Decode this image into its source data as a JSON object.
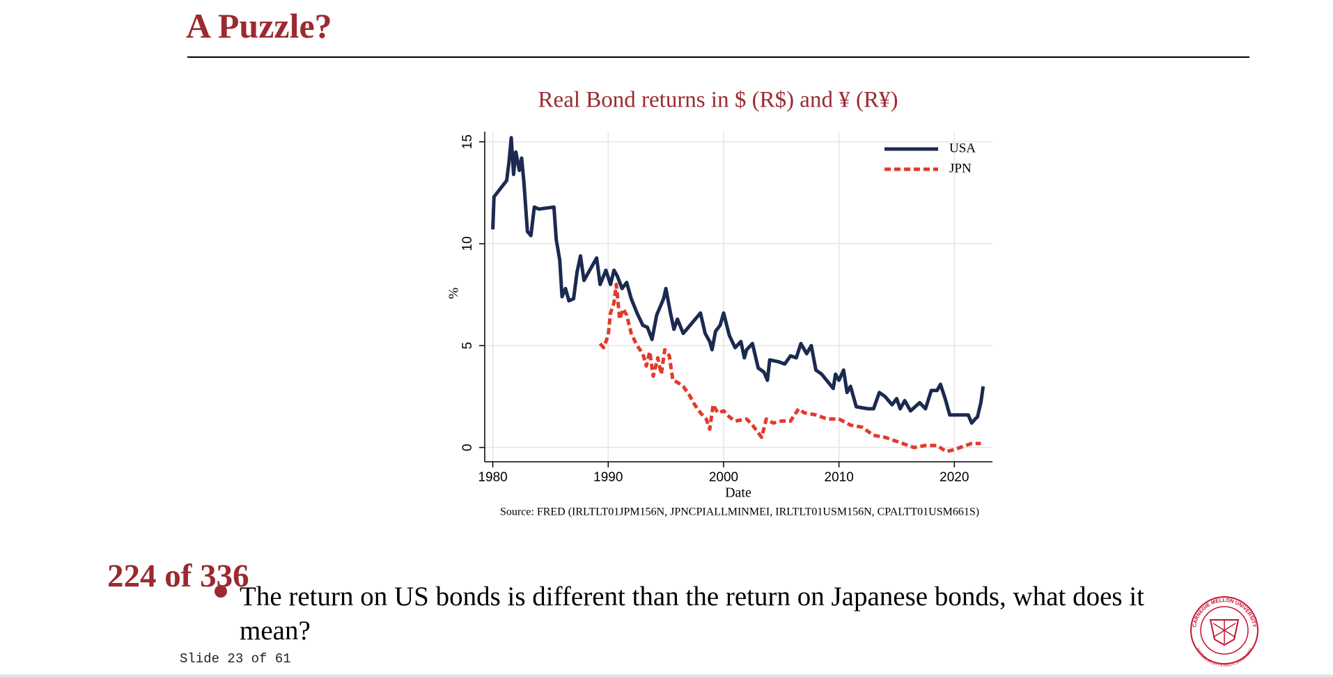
{
  "slide": {
    "title": "A Puzzle?",
    "counter": "224 of 336",
    "bullets": [
      "The return on US bonds is different than the return on Japanese bonds, what does it mean?"
    ],
    "footer": "Slide 23 of 61",
    "logo": [
      "CARNEGIE MELLON UNIVERSITY",
      "PITTSBURGH PENNSYLVANIA 1900"
    ]
  },
  "chart_data": {
    "type": "line",
    "title": "Real Bond returns in $ (R$) and ¥ (R¥)",
    "xlabel": "Date",
    "ylabel": "%",
    "source": "Source: FRED (IRLTLT01JPM156N, JPNCPIALLMINMEI, IRLTLT01USM156N, CPALTT01USM661S)",
    "xlim": [
      1979.3,
      2023.3
    ],
    "xticks": [
      1980,
      1990,
      2000,
      2010,
      2020
    ],
    "ylim": [
      -0.7,
      15.5
    ],
    "yticks": [
      0,
      5,
      10,
      15
    ],
    "grid": true,
    "legend": "top-right",
    "series": [
      {
        "name": "USA",
        "color": "#1b2a50",
        "style": "solid",
        "x": [
          1980.0,
          1980.1,
          1981.2,
          1981.4,
          1981.6,
          1981.8,
          1982.0,
          1982.3,
          1982.5,
          1982.7,
          1983.0,
          1983.3,
          1983.6,
          1984.0,
          1985.3,
          1985.5,
          1985.8,
          1986.0,
          1986.3,
          1986.6,
          1987.0,
          1987.3,
          1987.6,
          1987.9,
          1988.5,
          1989.0,
          1989.3,
          1989.8,
          1990.2,
          1990.5,
          1990.8,
          1991.2,
          1991.6,
          1992.0,
          1992.5,
          1993.0,
          1993.4,
          1993.8,
          1994.2,
          1994.8,
          1995.0,
          1995.4,
          1995.7,
          1996.0,
          1996.5,
          1998.0,
          1998.4,
          1998.8,
          1999.0,
          1999.3,
          1999.7,
          2000.0,
          2000.5,
          2001.0,
          2001.5,
          2001.8,
          2002.0,
          2002.5,
          2003.0,
          2003.5,
          2003.8,
          2004.0,
          2004.8,
          2005.3,
          2005.8,
          2006.3,
          2006.7,
          2007.2,
          2007.6,
          2008.0,
          2008.5,
          2009.5,
          2009.7,
          2010.0,
          2010.4,
          2010.7,
          2011.0,
          2011.5,
          2012.5,
          2013.0,
          2013.5,
          2014.0,
          2014.6,
          2015.0,
          2015.3,
          2015.7,
          2016.2,
          2017.0,
          2017.5,
          2018.0,
          2018.5,
          2018.8,
          2019.2,
          2019.6,
          2020.0,
          2021.2,
          2021.5,
          2021.8,
          2022.0,
          2022.3,
          2022.5
        ],
        "values": [
          10.7,
          12.3,
          13.1,
          14.0,
          15.2,
          13.4,
          14.5,
          13.6,
          14.2,
          13.0,
          10.6,
          10.4,
          11.8,
          11.7,
          11.8,
          10.2,
          9.2,
          7.4,
          7.8,
          7.2,
          7.3,
          8.6,
          9.4,
          8.2,
          8.8,
          9.3,
          8.0,
          8.7,
          8.0,
          8.7,
          8.4,
          7.8,
          8.1,
          7.3,
          6.6,
          6.0,
          5.9,
          5.3,
          6.5,
          7.3,
          7.8,
          6.6,
          5.8,
          6.3,
          5.6,
          6.6,
          5.6,
          5.2,
          4.8,
          5.7,
          6.0,
          6.6,
          5.5,
          4.9,
          5.2,
          4.4,
          4.8,
          5.1,
          3.9,
          3.7,
          3.3,
          4.3,
          4.2,
          4.1,
          4.5,
          4.4,
          5.1,
          4.6,
          5.0,
          3.8,
          3.6,
          2.9,
          3.6,
          3.3,
          3.8,
          2.7,
          3.0,
          2.0,
          1.9,
          1.9,
          2.7,
          2.5,
          2.1,
          2.4,
          1.9,
          2.3,
          1.8,
          2.2,
          1.9,
          2.8,
          2.8,
          3.1,
          2.4,
          1.6,
          1.6,
          1.6,
          1.2,
          1.4,
          1.5,
          2.2,
          3.0
        ]
      },
      {
        "name": "JPN",
        "color": "#e23a2c",
        "style": "dashed",
        "x": [
          1989.3,
          1989.6,
          1990.0,
          1990.2,
          1990.5,
          1990.7,
          1991.0,
          1991.3,
          1991.6,
          1992.0,
          1992.5,
          1993.0,
          1993.3,
          1993.6,
          1993.9,
          1994.3,
          1994.6,
          1994.9,
          1995.3,
          1995.6,
          1996.0,
          1996.5,
          1997.0,
          1997.5,
          1998.0,
          1998.5,
          1998.8,
          1999.1,
          1999.5,
          2000.0,
          2000.5,
          2001.0,
          2002.0,
          2002.5,
          2003.3,
          2003.7,
          2004.3,
          2005.0,
          2005.8,
          2006.5,
          2007.0,
          2008.0,
          2009.0,
          2010.0,
          2011.0,
          2012.0,
          2013.0,
          2014.0,
          2015.0,
          2016.0,
          2016.5,
          2017.5,
          2018.5,
          2019.3,
          2020.0,
          2020.5,
          2021.5,
          2022.3
        ],
        "values": [
          5.1,
          4.9,
          5.5,
          6.6,
          7.1,
          8.0,
          6.3,
          6.8,
          6.5,
          5.6,
          5.0,
          4.6,
          4.0,
          4.7,
          3.5,
          4.4,
          3.6,
          4.8,
          4.5,
          3.3,
          3.2,
          3.0,
          2.6,
          2.1,
          1.7,
          1.4,
          0.9,
          2.1,
          1.7,
          1.8,
          1.5,
          1.3,
          1.4,
          1.1,
          0.5,
          1.4,
          1.2,
          1.3,
          1.3,
          1.9,
          1.7,
          1.6,
          1.4,
          1.4,
          1.1,
          1.0,
          0.6,
          0.5,
          0.3,
          0.1,
          0.0,
          0.1,
          0.1,
          -0.2,
          -0.1,
          0.0,
          0.2,
          0.2
        ]
      }
    ]
  }
}
